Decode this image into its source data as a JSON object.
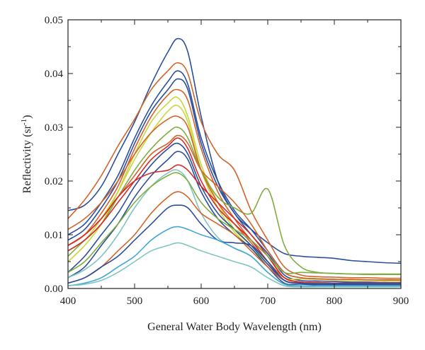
{
  "chart_data": {
    "type": "line",
    "xlabel": "General Water Body Wavelength (nm)",
    "ylabel": "Reflectivity (sr",
    "ylabel_superscript": "-1",
    "ylabel_close": ")",
    "xlim": [
      400,
      900
    ],
    "ylim": [
      0,
      0.05
    ],
    "x_ticks": [
      "400",
      "500",
      "600",
      "700",
      "800",
      "900"
    ],
    "y_ticks": [
      "0.00",
      "0.01",
      "0.02",
      "0.03",
      "0.04",
      "0.05"
    ],
    "grid": false,
    "legend": "none",
    "x": [
      400,
      425,
      450,
      475,
      500,
      525,
      550,
      565,
      580,
      600,
      625,
      650,
      675,
      700,
      725,
      750,
      775,
      800,
      825,
      850,
      875,
      900
    ],
    "series": [
      {
        "color": "#2b4f9e",
        "values": [
          0.0145,
          0.0155,
          0.019,
          0.025,
          0.031,
          0.038,
          0.044,
          0.0465,
          0.044,
          0.032,
          0.02,
          0.014,
          0.011,
          0.0085,
          0.0065,
          0.006,
          0.0058,
          0.0056,
          0.0052,
          0.005,
          0.0048,
          0.0047
        ]
      },
      {
        "color": "#d3642a",
        "values": [
          0.013,
          0.0165,
          0.021,
          0.0265,
          0.0315,
          0.037,
          0.0405,
          0.042,
          0.04,
          0.031,
          0.025,
          0.022,
          0.0145,
          0.009,
          0.004,
          0.0025,
          0.0022,
          0.0021,
          0.002,
          0.002,
          0.0019,
          0.0019
        ]
      },
      {
        "color": "#2b4f9e",
        "values": [
          0.01,
          0.012,
          0.016,
          0.021,
          0.028,
          0.034,
          0.0385,
          0.0405,
          0.038,
          0.028,
          0.02,
          0.0145,
          0.011,
          0.007,
          0.003,
          0.002,
          0.0018,
          0.0017,
          0.0016,
          0.0016,
          0.0015,
          0.0015
        ]
      },
      {
        "color": "#2b4f9e",
        "values": [
          0.009,
          0.011,
          0.015,
          0.02,
          0.027,
          0.033,
          0.037,
          0.039,
          0.037,
          0.027,
          0.019,
          0.014,
          0.01,
          0.0065,
          0.0025,
          0.0015,
          0.0014,
          0.0013,
          0.0012,
          0.0012,
          0.0011,
          0.0011
        ]
      },
      {
        "color": "#d3642a",
        "values": [
          0.008,
          0.01,
          0.014,
          0.019,
          0.026,
          0.032,
          0.036,
          0.037,
          0.035,
          0.026,
          0.018,
          0.013,
          0.009,
          0.006,
          0.002,
          0.0012,
          0.0011,
          0.001,
          0.001,
          0.001,
          0.0009,
          0.0009
        ]
      },
      {
        "color": "#cbd63a",
        "values": [
          0.005,
          0.008,
          0.012,
          0.018,
          0.025,
          0.031,
          0.0345,
          0.0355,
          0.032,
          0.023,
          0.016,
          0.011,
          0.008,
          0.005,
          0.002,
          0.0018,
          0.0017,
          0.0016,
          0.0015,
          0.0015,
          0.0014,
          0.0014
        ]
      },
      {
        "color": "#cbd63a",
        "values": [
          0.007,
          0.009,
          0.013,
          0.018,
          0.024,
          0.029,
          0.033,
          0.034,
          0.031,
          0.022,
          0.015,
          0.0105,
          0.0075,
          0.0045,
          0.0015,
          0.001,
          0.001,
          0.0009,
          0.0009,
          0.0009,
          0.0009,
          0.0009
        ]
      },
      {
        "color": "#d3642a",
        "values": [
          0.011,
          0.013,
          0.016,
          0.02,
          0.025,
          0.029,
          0.0315,
          0.032,
          0.03,
          0.022,
          0.016,
          0.012,
          0.0085,
          0.005,
          0.002,
          0.0012,
          0.0011,
          0.001,
          0.001,
          0.001,
          0.001,
          0.001
        ]
      },
      {
        "color": "#7fad3f",
        "values": [
          0.006,
          0.009,
          0.012,
          0.017,
          0.022,
          0.026,
          0.029,
          0.03,
          0.028,
          0.022,
          0.017,
          0.015,
          0.014,
          0.0185,
          0.008,
          0.004,
          0.003,
          0.0028,
          0.0027,
          0.0026,
          0.0026,
          0.0026
        ]
      },
      {
        "color": "#d3642a",
        "values": [
          0.008,
          0.01,
          0.013,
          0.017,
          0.021,
          0.025,
          0.027,
          0.0285,
          0.027,
          0.022,
          0.019,
          0.016,
          0.012,
          0.007,
          0.003,
          0.002,
          0.0018,
          0.0017,
          0.0017,
          0.0016,
          0.0016,
          0.0016
        ]
      },
      {
        "color": "#d62a2a",
        "values": [
          0.007,
          0.009,
          0.012,
          0.016,
          0.02,
          0.024,
          0.0265,
          0.028,
          0.026,
          0.02,
          0.015,
          0.012,
          0.009,
          0.005,
          0.0015,
          0.001,
          0.0009,
          0.0009,
          0.0008,
          0.0008,
          0.0008,
          0.0008
        ]
      },
      {
        "color": "#2b4f9e",
        "values": [
          0.003,
          0.006,
          0.01,
          0.014,
          0.019,
          0.023,
          0.026,
          0.027,
          0.025,
          0.019,
          0.014,
          0.011,
          0.008,
          0.0045,
          0.0015,
          0.001,
          0.0009,
          0.0009,
          0.0008,
          0.0008,
          0.0008,
          0.0008
        ]
      },
      {
        "color": "#2b4f9e",
        "values": [
          0.002,
          0.004,
          0.008,
          0.012,
          0.017,
          0.021,
          0.024,
          0.0255,
          0.024,
          0.018,
          0.013,
          0.01,
          0.0075,
          0.004,
          0.001,
          0.0008,
          0.0007,
          0.0007,
          0.0007,
          0.0006,
          0.0006,
          0.0006
        ]
      },
      {
        "color": "#d62a2a",
        "values": [
          0.008,
          0.01,
          0.013,
          0.017,
          0.02,
          0.0215,
          0.022,
          0.023,
          0.022,
          0.019,
          0.016,
          0.013,
          0.01,
          0.006,
          0.002,
          0.0012,
          0.0011,
          0.001,
          0.001,
          0.001,
          0.001,
          0.001
        ]
      },
      {
        "color": "#7fc5c0",
        "values": [
          0.002,
          0.0035,
          0.006,
          0.01,
          0.015,
          0.019,
          0.0215,
          0.022,
          0.02,
          0.014,
          0.0095,
          0.0075,
          0.006,
          0.003,
          0.0008,
          0.0005,
          0.0005,
          0.0005,
          0.0005,
          0.0005,
          0.0005,
          0.0005
        ]
      },
      {
        "color": "#d3642a",
        "values": [
          0.001,
          0.002,
          0.004,
          0.007,
          0.01,
          0.014,
          0.017,
          0.018,
          0.017,
          0.014,
          0.012,
          0.01,
          0.007,
          0.004,
          0.0015,
          0.001,
          0.001,
          0.0009,
          0.0009,
          0.0009,
          0.0009,
          0.0009
        ]
      },
      {
        "color": "#2b4f9e",
        "values": [
          0.001,
          0.002,
          0.004,
          0.006,
          0.009,
          0.012,
          0.015,
          0.0155,
          0.015,
          0.012,
          0.009,
          0.0085,
          0.008,
          0.005,
          0.0015,
          0.001,
          0.0009,
          0.0009,
          0.0009,
          0.0009,
          0.0009,
          0.0009
        ]
      },
      {
        "color": "#3fa8d8",
        "values": [
          0.0005,
          0.001,
          0.002,
          0.004,
          0.006,
          0.009,
          0.011,
          0.0115,
          0.011,
          0.01,
          0.009,
          0.0075,
          0.006,
          0.003,
          0.0008,
          0.0005,
          0.0005,
          0.0005,
          0.0005,
          0.0005,
          0.0005,
          0.0005
        ]
      },
      {
        "color": "#7fc5c0",
        "values": [
          0.0005,
          0.0008,
          0.0015,
          0.003,
          0.005,
          0.007,
          0.008,
          0.0085,
          0.008,
          0.007,
          0.006,
          0.005,
          0.004,
          0.002,
          0.0005,
          0.0003,
          0.0003,
          0.0003,
          0.0003,
          0.0003,
          0.0003,
          0.0003
        ]
      },
      {
        "color": "#7fad3f",
        "values": [
          0.003,
          0.005,
          0.0085,
          0.012,
          0.016,
          0.019,
          0.021,
          0.0215,
          0.02,
          0.016,
          0.013,
          0.011,
          0.009,
          0.006,
          0.003,
          0.003,
          0.0029,
          0.0028,
          0.0027,
          0.0027,
          0.0027,
          0.0027
        ]
      }
    ]
  }
}
